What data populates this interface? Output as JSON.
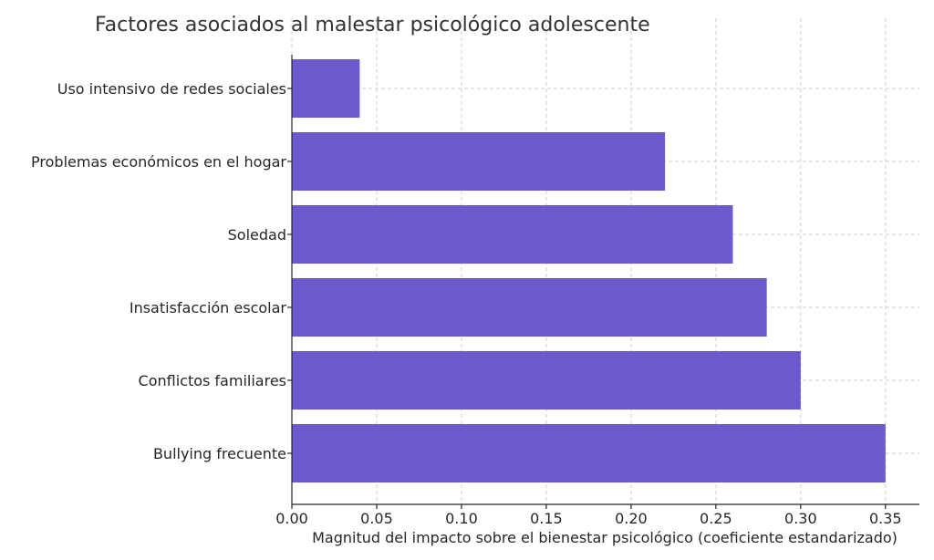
{
  "chart_data": {
    "type": "bar",
    "orientation": "horizontal",
    "title": "Factores asociados al malestar psicológico adolescente",
    "xlabel": "Magnitud del impacto sobre el bienestar psicológico (coeficiente estandarizado)",
    "ylabel": "",
    "categories": [
      "Uso intensivo de redes sociales",
      "Problemas económicos en el hogar",
      "Soledad",
      "Insatisfacción escolar",
      "Conflictos familiares",
      "Bullying frecuente"
    ],
    "values": [
      0.04,
      0.22,
      0.26,
      0.28,
      0.3,
      0.35
    ],
    "xlim": [
      0,
      0.37
    ],
    "xticks": [
      "0.00",
      "0.05",
      "0.10",
      "0.15",
      "0.20",
      "0.25",
      "0.30",
      "0.35"
    ],
    "xtick_values": [
      0,
      0.05,
      0.1,
      0.15,
      0.2,
      0.25,
      0.3,
      0.35
    ],
    "grid": true,
    "bar_color": "#6a5acd"
  }
}
